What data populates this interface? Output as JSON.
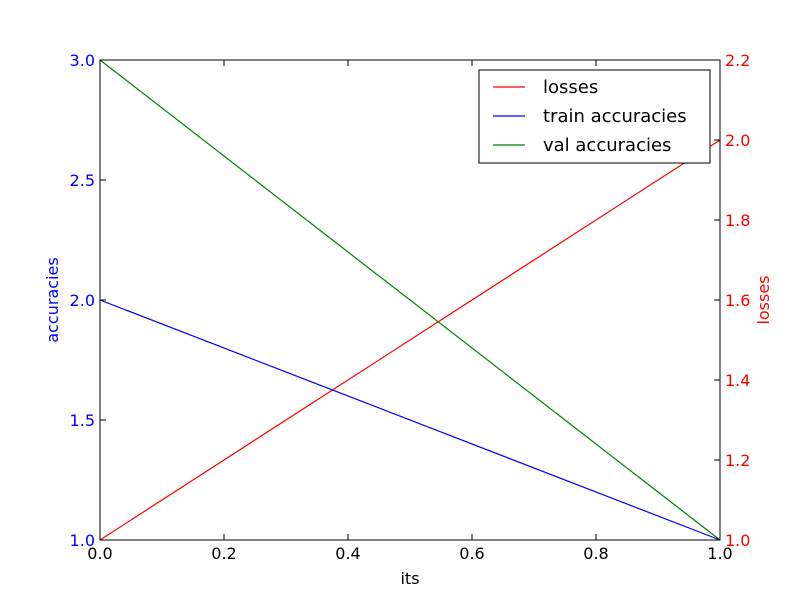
{
  "chart_data": {
    "type": "line",
    "xlabel": "its",
    "ylabel_left": "accuracies",
    "ylabel_right": "losses",
    "xlim": [
      0.0,
      1.0
    ],
    "ylim_left": [
      1.0,
      3.0
    ],
    "ylim_right": [
      1.0,
      2.2
    ],
    "x_ticks": [
      "0.0",
      "0.2",
      "0.4",
      "0.6",
      "0.8",
      "1.0"
    ],
    "y_left_ticks": [
      "1.0",
      "1.5",
      "2.0",
      "2.5",
      "3.0"
    ],
    "y_right_ticks": [
      "1.0",
      "1.2",
      "1.4",
      "1.6",
      "1.8",
      "2.0",
      "2.2"
    ],
    "left_axis_color": "#0000ff",
    "right_axis_color": "#ff0000",
    "legend_position": "top-right",
    "grid": false,
    "series": [
      {
        "name": "losses",
        "axis": "right",
        "color": "#ff0000",
        "x": [
          0.0,
          1.0
        ],
        "y": [
          1.0,
          2.0
        ]
      },
      {
        "name": "train accuracies",
        "axis": "left",
        "color": "#0000ff",
        "x": [
          0.0,
          1.0
        ],
        "y": [
          2.0,
          1.0
        ]
      },
      {
        "name": "val accuracies",
        "axis": "left",
        "color": "#008000",
        "x": [
          0.0,
          1.0
        ],
        "y": [
          3.0,
          1.0
        ]
      }
    ]
  }
}
